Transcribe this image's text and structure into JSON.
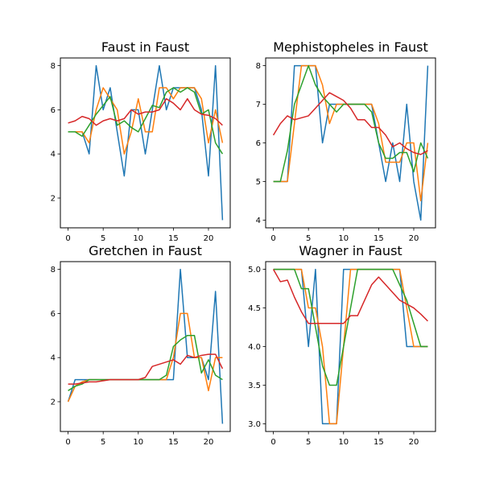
{
  "chart_data": [
    {
      "type": "line",
      "title": "Faust in Faust",
      "x": [
        0,
        1,
        2,
        3,
        4,
        5,
        6,
        7,
        8,
        9,
        10,
        11,
        12,
        13,
        14,
        15,
        16,
        17,
        18,
        19,
        20,
        21,
        22
      ],
      "xlim": [
        -1.1,
        23.1
      ],
      "ylim": [
        0.65,
        8.35
      ],
      "xticks": [
        0,
        5,
        10,
        15,
        20
      ],
      "yticks": [
        2,
        4,
        6,
        8
      ],
      "series": [
        {
          "color": "#1f77b4",
          "values": [
            5,
            5,
            5,
            4,
            8,
            6,
            7,
            5,
            3,
            6,
            6,
            4,
            6,
            8,
            6,
            7,
            7,
            7,
            7,
            6,
            3,
            8,
            1
          ]
        },
        {
          "color": "#ff7f0e",
          "values": [
            5,
            5,
            5,
            4.5,
            6,
            7,
            6.5,
            6,
            4,
            5,
            6.5,
            5,
            5,
            7,
            7,
            6.5,
            7,
            7,
            7,
            6.5,
            4.5,
            6,
            4.5
          ]
        },
        {
          "color": "#2ca02c",
          "values": [
            5,
            5,
            4.8,
            5.3,
            5.8,
            6.2,
            6.6,
            5.3,
            5.5,
            5.2,
            5,
            5.6,
            6.2,
            6.1,
            6.8,
            7,
            6.8,
            7,
            6.8,
            5.8,
            6,
            4.5,
            4
          ]
        },
        {
          "color": "#d62728",
          "values": [
            5.4,
            5.5,
            5.7,
            5.6,
            5.3,
            5.5,
            5.6,
            5.5,
            5.6,
            6,
            5.8,
            5.9,
            5.9,
            6,
            6.5,
            6.3,
            6,
            6.5,
            6,
            5.8,
            5.75,
            5.6,
            5.3
          ]
        }
      ]
    },
    {
      "type": "line",
      "title": "Mephistopheles in Faust",
      "x": [
        0,
        1,
        2,
        3,
        4,
        5,
        6,
        7,
        8,
        9,
        10,
        11,
        12,
        13,
        14,
        15,
        16,
        17,
        18,
        19,
        20,
        21,
        22
      ],
      "xlim": [
        -1.1,
        23.1
      ],
      "ylim": [
        3.8,
        8.2
      ],
      "xticks": [
        0,
        5,
        10,
        15,
        20
      ],
      "yticks": [
        4,
        5,
        6,
        7,
        8
      ],
      "series": [
        {
          "color": "#1f77b4",
          "values": [
            5,
            5,
            5,
            8,
            8,
            8,
            8,
            6,
            7,
            7,
            7,
            7,
            7,
            7,
            7,
            6,
            5,
            6,
            5,
            7,
            5,
            4,
            8
          ]
        },
        {
          "color": "#ff7f0e",
          "values": [
            5,
            5,
            5,
            6.5,
            8,
            8,
            8,
            7.5,
            6.5,
            7,
            7,
            7,
            7,
            7,
            7,
            6.5,
            5.5,
            5.5,
            5.5,
            6,
            6,
            4.5,
            6
          ]
        },
        {
          "color": "#2ca02c",
          "values": [
            5,
            5,
            5.8,
            7,
            7.5,
            8,
            7.5,
            7.2,
            7,
            6.8,
            7,
            7,
            7,
            7,
            6.8,
            6,
            5.6,
            5.6,
            5.75,
            5.75,
            5.25,
            6,
            5.6
          ]
        },
        {
          "color": "#d62728",
          "values": [
            6.2,
            6.5,
            6.7,
            6.6,
            6.65,
            6.7,
            6.9,
            7.1,
            7.3,
            7.2,
            7.1,
            6.9,
            6.6,
            6.6,
            6.4,
            6.4,
            6.2,
            5.9,
            6,
            5.85,
            5.75,
            5.7,
            5.8
          ]
        }
      ]
    },
    {
      "type": "line",
      "title": "Gretchen in Faust",
      "x": [
        0,
        1,
        2,
        3,
        4,
        5,
        6,
        7,
        8,
        9,
        10,
        11,
        12,
        13,
        14,
        15,
        16,
        17,
        18,
        19,
        20,
        21,
        22
      ],
      "xlim": [
        -1.1,
        23.1
      ],
      "ylim": [
        0.65,
        8.35
      ],
      "xticks": [
        0,
        5,
        10,
        15,
        20
      ],
      "yticks": [
        2,
        4,
        6,
        8
      ],
      "series": [
        {
          "color": "#1f77b4",
          "values": [
            2,
            3,
            3,
            3,
            3,
            3,
            3,
            3,
            3,
            3,
            3,
            3,
            3,
            3,
            3,
            3,
            8,
            4,
            4,
            4,
            3,
            7,
            1
          ]
        },
        {
          "color": "#ff7f0e",
          "values": [
            2,
            2.7,
            2.9,
            3,
            3,
            3,
            3,
            3,
            3,
            3,
            3,
            3,
            3,
            3,
            3,
            4,
            6,
            6,
            4,
            4,
            2.5,
            4,
            4
          ]
        },
        {
          "color": "#2ca02c",
          "values": [
            2.5,
            2.7,
            2.8,
            3,
            3,
            3,
            3,
            3,
            3,
            3,
            3,
            3,
            3,
            3,
            3.2,
            4.5,
            4.8,
            5,
            5,
            3.3,
            3.9,
            3.2,
            3
          ]
        },
        {
          "color": "#d62728",
          "values": [
            2.8,
            2.8,
            2.85,
            2.9,
            2.9,
            2.95,
            3,
            3,
            3,
            3,
            3,
            3.1,
            3.6,
            3.7,
            3.8,
            3.9,
            3.7,
            4.1,
            4,
            4.1,
            4.15,
            4.15,
            3.5
          ]
        }
      ]
    },
    {
      "type": "line",
      "title": "Wagner in Faust",
      "x": [
        0,
        1,
        2,
        3,
        4,
        5,
        6,
        7,
        8,
        9,
        10,
        11,
        12,
        13,
        14,
        15,
        16,
        17,
        18,
        19,
        20,
        21,
        22
      ],
      "xlim": [
        -1.1,
        23.1
      ],
      "ylim": [
        2.9,
        5.1
      ],
      "xticks": [
        0,
        5,
        10,
        15,
        20
      ],
      "yticks": [
        3.0,
        3.5,
        4.0,
        4.5,
        5.0
      ],
      "yticklabels": [
        "3.0",
        "3.5",
        "4.0",
        "4.5",
        "5.0"
      ],
      "series": [
        {
          "color": "#1f77b4",
          "values": [
            5,
            5,
            5,
            5,
            5,
            4,
            5,
            3,
            3,
            3,
            5,
            5,
            5,
            5,
            5,
            5,
            5,
            5,
            5,
            4,
            4,
            4,
            4
          ]
        },
        {
          "color": "#ff7f0e",
          "values": [
            5,
            5,
            5,
            5,
            5,
            4.5,
            4.5,
            4,
            3,
            3,
            4,
            5,
            5,
            5,
            5,
            5,
            5,
            5,
            5,
            4.5,
            4,
            4,
            4
          ]
        },
        {
          "color": "#2ca02c",
          "values": [
            5,
            5,
            5,
            5,
            4.75,
            4.75,
            4.25,
            3.75,
            3.5,
            3.5,
            4,
            4.5,
            5,
            5,
            5,
            5,
            5,
            5,
            4.8,
            4.6,
            4.3,
            4,
            4
          ]
        },
        {
          "color": "#d62728",
          "values": [
            5,
            4.84,
            4.86,
            4.64,
            4.45,
            4.3,
            4.3,
            4.3,
            4.3,
            4.3,
            4.3,
            4.4,
            4.4,
            4.6,
            4.8,
            4.9,
            4.8,
            4.7,
            4.6,
            4.55,
            4.5,
            4.42,
            4.33
          ]
        }
      ]
    }
  ]
}
